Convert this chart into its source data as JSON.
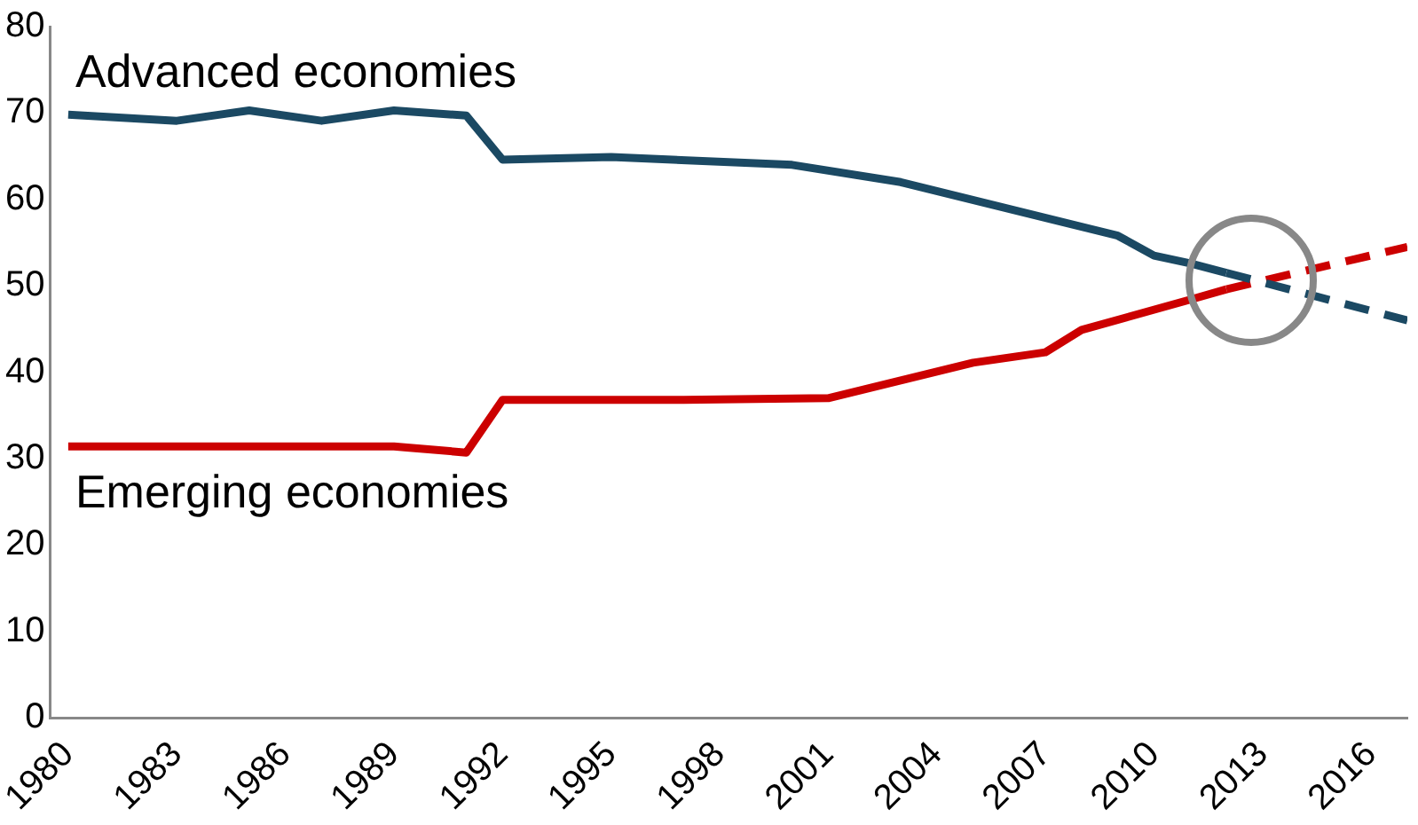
{
  "chart_data": {
    "type": "line",
    "xlim": [
      1979.5,
      2017
    ],
    "xticks": [
      1980,
      1983,
      1986,
      1989,
      1992,
      1995,
      1998,
      2001,
      2004,
      2007,
      2010,
      2013,
      2016
    ],
    "ylim": [
      0,
      80
    ],
    "yticks": [
      0,
      10,
      20,
      30,
      40,
      50,
      60,
      70,
      80
    ],
    "grid": false,
    "legend": false,
    "marker": "none",
    "series": [
      {
        "name": "Advanced economies",
        "color": "#1b4963",
        "line_style": "solid",
        "x": [
          1980,
          1983,
          1985,
          1987,
          1989,
          1991,
          1992,
          1995,
          2000,
          2003,
          2009,
          2010,
          2011,
          2012
        ],
        "values": [
          69.8,
          69.1,
          70.3,
          69.1,
          70.3,
          69.7,
          64.6,
          64.9,
          64.0,
          62.0,
          55.8,
          53.5,
          52.6,
          51.5
        ]
      },
      {
        "name": "Emerging economies",
        "color": "#cc0000",
        "line_style": "solid",
        "x": [
          1980,
          1989,
          1991,
          1992,
          1997,
          2001,
          2005,
          2007,
          2008,
          2011,
          2012
        ],
        "values": [
          31.4,
          31.4,
          30.7,
          36.8,
          36.8,
          37.0,
          41.1,
          42.3,
          44.9,
          48.4,
          49.6
        ]
      },
      {
        "color": "#1b4963",
        "line_style": "dashed",
        "x": [
          2012,
          2017
        ],
        "values": [
          51.5,
          46.0
        ]
      },
      {
        "color": "#cc0000",
        "line_style": "dashed",
        "x": [
          2012,
          2017
        ],
        "values": [
          49.6,
          54.5
        ]
      }
    ]
  }
}
